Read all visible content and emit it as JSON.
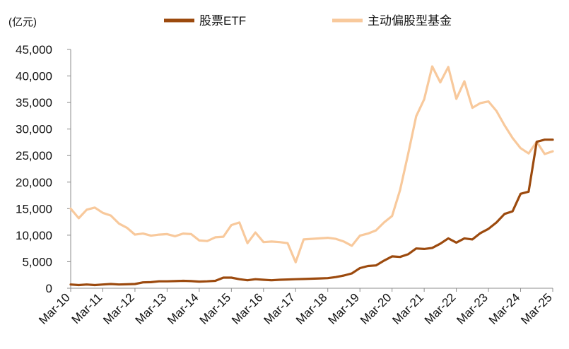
{
  "chart_data": {
    "type": "line",
    "unit_label": "(亿元)",
    "x_tick_labels": [
      "Mar-10",
      "Mar-11",
      "Mar-12",
      "Mar-13",
      "Mar-14",
      "Mar-15",
      "Mar-16",
      "Mar-17",
      "Mar-18",
      "Mar-19",
      "Mar-20",
      "Mar-21",
      "Mar-22",
      "Mar-23",
      "Mar-24",
      "Mar-25"
    ],
    "x_range": [
      2010,
      2025
    ],
    "ylim": [
      0,
      45000
    ],
    "y_ticks": [
      0,
      5000,
      10000,
      15000,
      20000,
      25000,
      30000,
      35000,
      40000,
      45000
    ],
    "y_tick_labels": [
      "0",
      "5,000",
      "10,000",
      "15,000",
      "20,000",
      "25,000",
      "30,000",
      "35,000",
      "40,000",
      "45,000"
    ],
    "legend_position": "top",
    "grid": false,
    "series": [
      {
        "name": "股票ETF",
        "color": "#9c4a0e",
        "x": [
          2010.0,
          2010.25,
          2010.5,
          2010.75,
          2011.0,
          2011.25,
          2011.5,
          2011.75,
          2012.0,
          2012.25,
          2012.5,
          2012.75,
          2013.0,
          2013.25,
          2013.5,
          2013.75,
          2014.0,
          2014.25,
          2014.5,
          2014.75,
          2015.0,
          2015.25,
          2015.5,
          2015.75,
          2016.0,
          2016.25,
          2016.5,
          2016.75,
          2017.0,
          2017.25,
          2017.5,
          2017.75,
          2018.0,
          2018.25,
          2018.5,
          2018.75,
          2019.0,
          2019.25,
          2019.5,
          2019.75,
          2020.0,
          2020.25,
          2020.5,
          2020.75,
          2021.0,
          2021.25,
          2021.5,
          2021.75,
          2022.0,
          2022.25,
          2022.5,
          2022.75,
          2023.0,
          2023.25,
          2023.5,
          2023.75,
          2024.0,
          2024.25,
          2024.5,
          2024.75,
          2025.0
        ],
        "values": [
          700,
          600,
          700,
          600,
          700,
          800,
          700,
          750,
          800,
          1100,
          1150,
          1300,
          1300,
          1350,
          1400,
          1350,
          1250,
          1300,
          1400,
          2000,
          2000,
          1700,
          1500,
          1700,
          1600,
          1500,
          1600,
          1650,
          1700,
          1750,
          1800,
          1850,
          1900,
          2100,
          2400,
          2800,
          3800,
          4200,
          4300,
          5200,
          6000,
          5900,
          6400,
          7500,
          7400,
          7600,
          8400,
          9400,
          8600,
          9400,
          9200,
          10400,
          11200,
          12400,
          14000,
          14500,
          17800,
          18200,
          27600,
          28000,
          28000
        ]
      },
      {
        "name": "主动偏股型基金",
        "color": "#f8c99c",
        "x": [
          2010.0,
          2010.25,
          2010.5,
          2010.75,
          2011.0,
          2011.25,
          2011.5,
          2011.75,
          2012.0,
          2012.25,
          2012.5,
          2012.75,
          2013.0,
          2013.25,
          2013.5,
          2013.75,
          2014.0,
          2014.25,
          2014.5,
          2014.75,
          2015.0,
          2015.25,
          2015.5,
          2015.75,
          2016.0,
          2016.25,
          2016.5,
          2016.75,
          2017.0,
          2017.25,
          2017.5,
          2017.75,
          2018.0,
          2018.25,
          2018.5,
          2018.75,
          2019.0,
          2019.25,
          2019.5,
          2019.75,
          2020.0,
          2020.25,
          2020.5,
          2020.75,
          2021.0,
          2021.25,
          2021.5,
          2021.75,
          2022.0,
          2022.25,
          2022.5,
          2022.75,
          2023.0,
          2023.25,
          2023.5,
          2023.75,
          2024.0,
          2024.25,
          2024.5,
          2024.75,
          2025.0
        ],
        "values": [
          15000,
          13200,
          14800,
          15200,
          14200,
          13700,
          12200,
          11400,
          10100,
          10300,
          9900,
          10100,
          10200,
          9800,
          10300,
          10200,
          9000,
          8900,
          9600,
          9700,
          11900,
          12400,
          8500,
          10500,
          8700,
          8800,
          8700,
          8500,
          4900,
          9200,
          9300,
          9400,
          9500,
          9300,
          8800,
          8000,
          9900,
          10300,
          10900,
          12400,
          13600,
          18500,
          25300,
          32400,
          35600,
          41800,
          38800,
          41700,
          35700,
          39000,
          34000,
          34900,
          35200,
          33400,
          30700,
          28300,
          26400,
          25400,
          27600,
          25300,
          25800
        ]
      }
    ]
  }
}
